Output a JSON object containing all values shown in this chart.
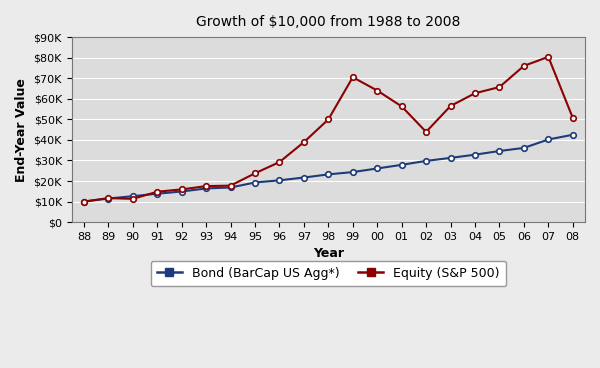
{
  "title": "Growth of $10,000 from 1988 to 2008",
  "xlabel": "Year",
  "ylabel": "End-Year Value",
  "year_labels": [
    "88",
    "89",
    "90",
    "91",
    "92",
    "93",
    "94",
    "95",
    "96",
    "97",
    "98",
    "99",
    "00",
    "01",
    "02",
    "03",
    "04",
    "05",
    "06",
    "07",
    "08"
  ],
  "bond_values": [
    10000,
    11487,
    12630,
    13829,
    14895,
    16380,
    16858,
    19274,
    20340,
    21685,
    23227,
    24347,
    26100,
    27870,
    29780,
    31250,
    32810,
    34600,
    36100,
    40200,
    42500
  ],
  "equity_values": [
    10000,
    11685,
    11325,
    14790,
    15930,
    17520,
    17760,
    23750,
    29210,
    38900,
    49950,
    70500,
    64000,
    56300,
    43900,
    56500,
    62700,
    65700,
    76000,
    80400,
    50700
  ],
  "bond_color": "#1F3A7A",
  "equity_color": "#8B0000",
  "marker": "o",
  "marker_facecolor": "white",
  "marker_size": 4,
  "marker_linewidth": 1.2,
  "line_width": 1.5,
  "ylim": [
    0,
    90000
  ],
  "yticks": [
    0,
    10000,
    20000,
    30000,
    40000,
    50000,
    60000,
    70000,
    80000,
    90000
  ],
  "ytick_labels": [
    "$0",
    "$10K",
    "$20K",
    "$30K",
    "$40K",
    "$50K",
    "$60K",
    "$70K",
    "$80K",
    "$90K"
  ],
  "bg_color": "#EBEBEB",
  "plot_bg_color": "#DCDCDC",
  "grid_color": "white",
  "legend_bond": "Bond (BarCap US Agg*)",
  "legend_equity": "Equity (S&P 500)",
  "title_fontsize": 10,
  "axis_label_fontsize": 9,
  "tick_fontsize": 8,
  "legend_fontsize": 9
}
